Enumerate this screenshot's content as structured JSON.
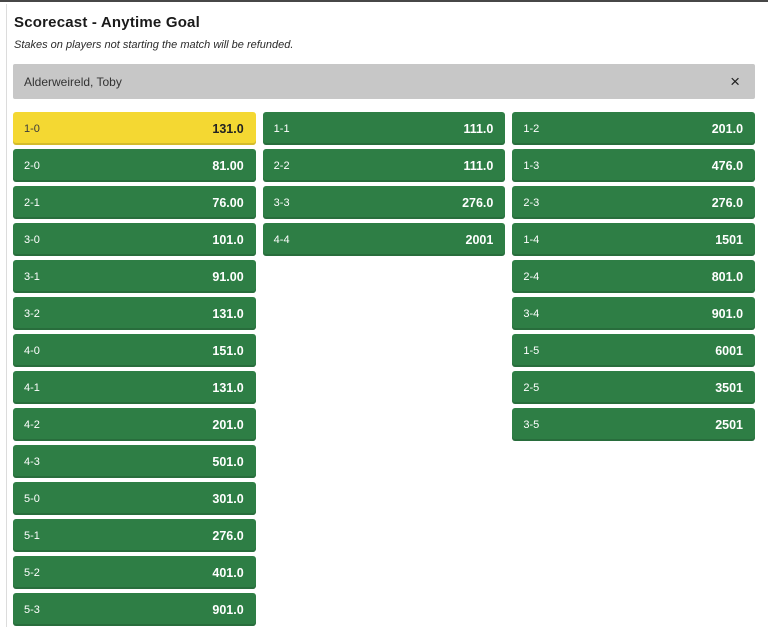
{
  "header": {
    "title": "Scorecast - Anytime Goal",
    "subtitle": "Stakes on players not starting the match will be refunded."
  },
  "player_selector": {
    "value": "Alderweireld, Toby",
    "close_icon": "×"
  },
  "colors": {
    "green": "#2e7e45",
    "yellow": "#f4d832",
    "selector_gray": "#c7c7c7"
  },
  "odds_grid": {
    "columns": [
      {
        "items": [
          {
            "score": "1-0",
            "odds": "131.0",
            "selected": true
          },
          {
            "score": "2-0",
            "odds": "81.00",
            "selected": false
          },
          {
            "score": "2-1",
            "odds": "76.00",
            "selected": false
          },
          {
            "score": "3-0",
            "odds": "101.0",
            "selected": false
          },
          {
            "score": "3-1",
            "odds": "91.00",
            "selected": false
          },
          {
            "score": "3-2",
            "odds": "131.0",
            "selected": false
          },
          {
            "score": "4-0",
            "odds": "151.0",
            "selected": false
          },
          {
            "score": "4-1",
            "odds": "131.0",
            "selected": false
          },
          {
            "score": "4-2",
            "odds": "201.0",
            "selected": false
          },
          {
            "score": "4-3",
            "odds": "501.0",
            "selected": false
          },
          {
            "score": "5-0",
            "odds": "301.0",
            "selected": false
          },
          {
            "score": "5-1",
            "odds": "276.0",
            "selected": false
          },
          {
            "score": "5-2",
            "odds": "401.0",
            "selected": false
          },
          {
            "score": "5-3",
            "odds": "901.0",
            "selected": false
          }
        ]
      },
      {
        "items": [
          {
            "score": "1-1",
            "odds": "111.0",
            "selected": false
          },
          {
            "score": "2-2",
            "odds": "111.0",
            "selected": false
          },
          {
            "score": "3-3",
            "odds": "276.0",
            "selected": false
          },
          {
            "score": "4-4",
            "odds": "2001",
            "selected": false
          }
        ]
      },
      {
        "items": [
          {
            "score": "1-2",
            "odds": "201.0",
            "selected": false
          },
          {
            "score": "1-3",
            "odds": "476.0",
            "selected": false
          },
          {
            "score": "2-3",
            "odds": "276.0",
            "selected": false
          },
          {
            "score": "1-4",
            "odds": "1501",
            "selected": false
          },
          {
            "score": "2-4",
            "odds": "801.0",
            "selected": false
          },
          {
            "score": "3-4",
            "odds": "901.0",
            "selected": false
          },
          {
            "score": "1-5",
            "odds": "6001",
            "selected": false
          },
          {
            "score": "2-5",
            "odds": "3501",
            "selected": false
          },
          {
            "score": "3-5",
            "odds": "2501",
            "selected": false
          }
        ]
      }
    ]
  }
}
